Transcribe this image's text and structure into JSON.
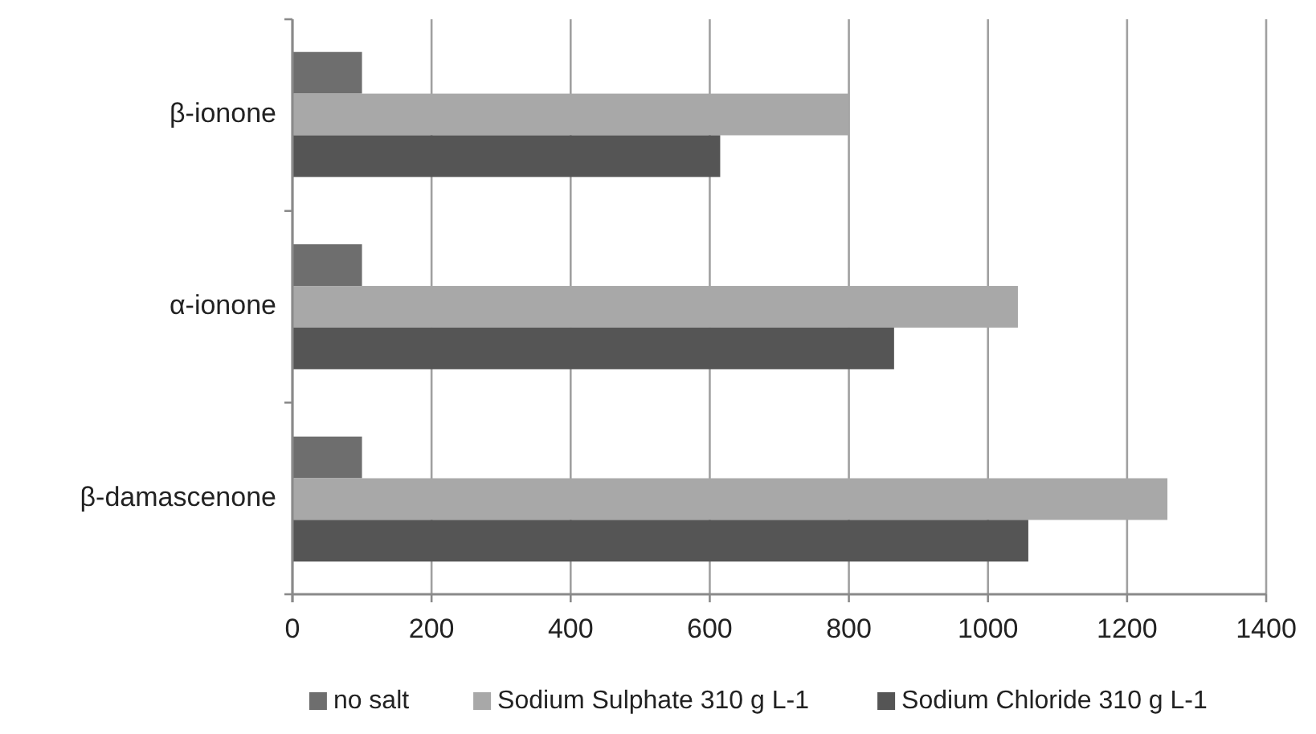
{
  "chart_data": {
    "type": "bar",
    "orientation": "horizontal",
    "categories": [
      "β-ionone",
      "α-ionone",
      "β-damascenone"
    ],
    "series": [
      {
        "name": "no salt",
        "color": "#6e6e6e",
        "values": [
          100,
          100,
          100
        ]
      },
      {
        "name": "Sodium Sulphate 310 g L-1",
        "color": "#a8a8a8",
        "values": [
          800,
          1043,
          1258
        ]
      },
      {
        "name": "Sodium Chloride 310 g L-1",
        "color": "#555555",
        "values": [
          615,
          865,
          1058
        ]
      }
    ],
    "xlim": [
      0,
      1400
    ],
    "xticks": [
      0,
      200,
      400,
      600,
      800,
      1000,
      1200,
      1400
    ],
    "grid": "x",
    "legend": "bottom"
  }
}
